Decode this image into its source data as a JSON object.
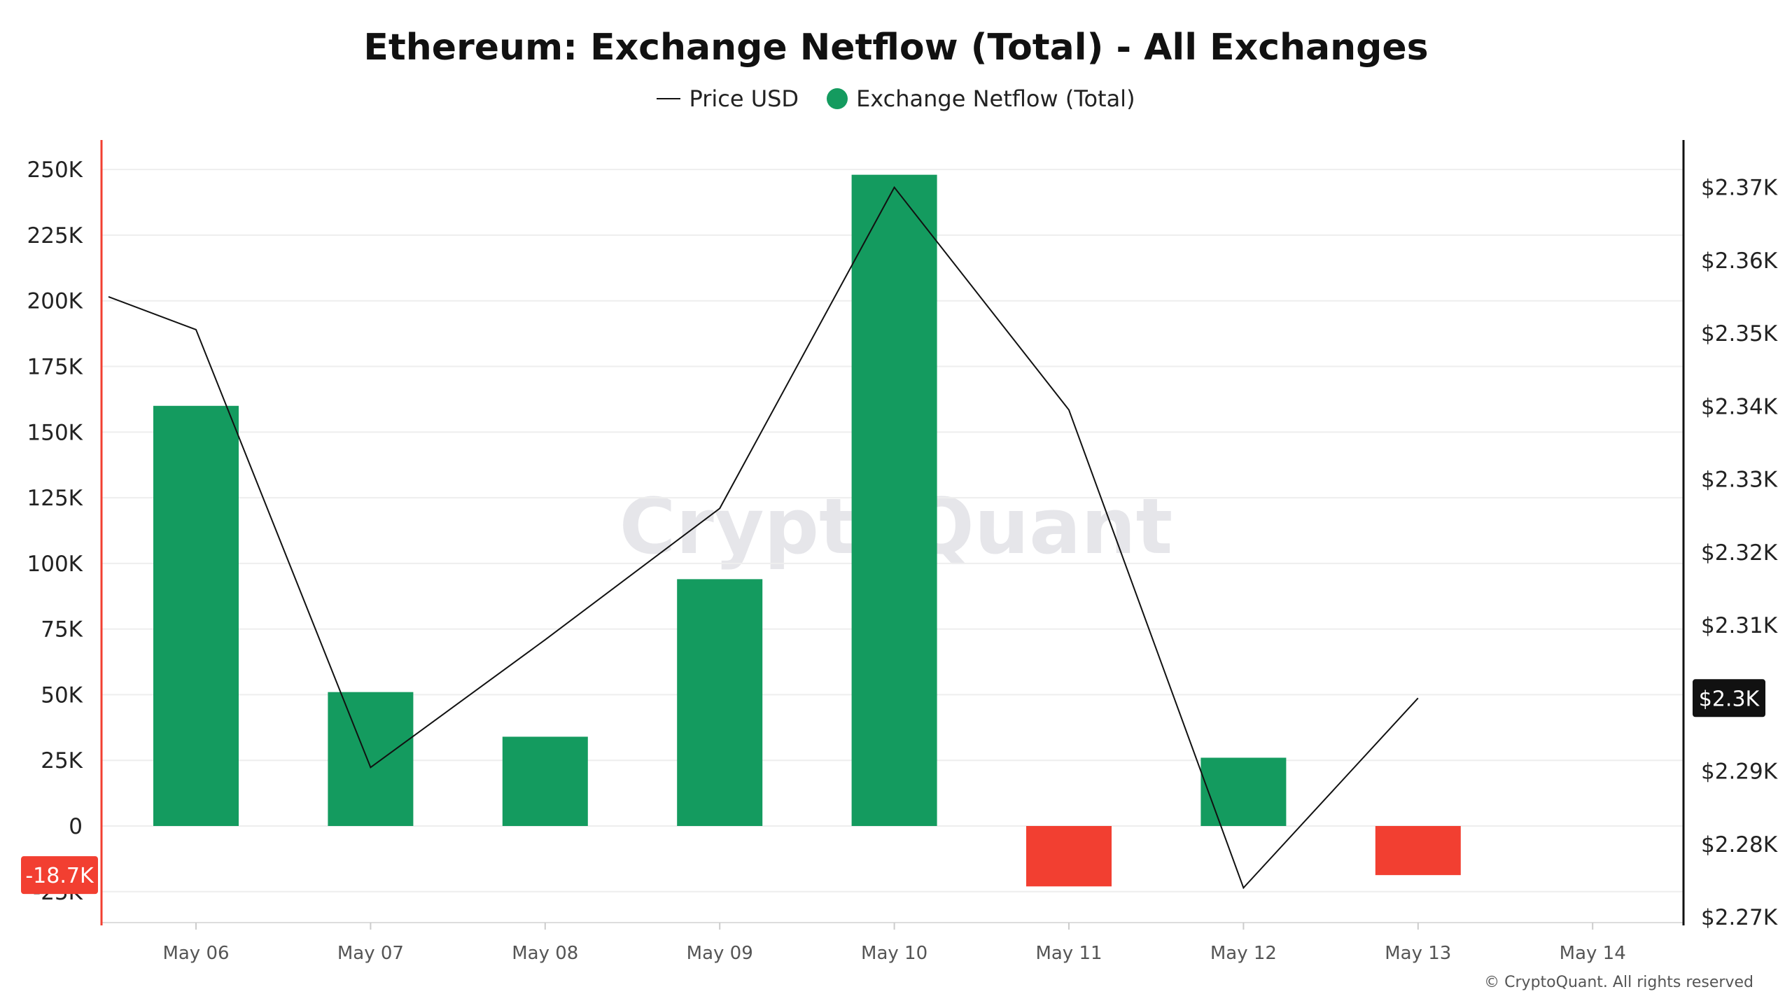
{
  "chart_data": {
    "type": "bar",
    "title": "Ethereum: Exchange Netflow (Total) - All Exchanges",
    "categories": [
      "May 06",
      "May 07",
      "May 08",
      "May 09",
      "May 10",
      "May 11",
      "May 12",
      "May 13",
      "May 14"
    ],
    "series": [
      {
        "name": "Exchange Netflow (Total)",
        "type": "bar",
        "axis": "left",
        "values": [
          160000,
          51000,
          34000,
          94000,
          248000,
          -23000,
          26000,
          -18700,
          null
        ]
      },
      {
        "name": "Price USD",
        "type": "line",
        "axis": "right",
        "values": [
          2350.5,
          2290.5,
          2308,
          2326,
          2370,
          2339.5,
          2274,
          2300,
          null
        ],
        "start_value": 2355
      }
    ],
    "left_axis": {
      "ticks": [
        "250K",
        "225K",
        "200K",
        "175K",
        "150K",
        "125K",
        "100K",
        "75K",
        "50K",
        "25K",
        "0",
        "-25K"
      ],
      "ylim": [
        -37000,
        260000
      ]
    },
    "right_axis": {
      "ticks": [
        "$2.37K",
        "$2.36K",
        "$2.35K",
        "$2.34K",
        "$2.33K",
        "$2.32K",
        "$2.31K",
        "$2.3K",
        "$2.29K",
        "$2.28K",
        "$2.27K"
      ],
      "ylim": [
        2270,
        2371.5
      ]
    },
    "current_value_labels": {
      "left": "-18.7K",
      "right": "$2.3K"
    },
    "legend": {
      "position": "top-center",
      "entries": [
        "Price USD",
        "Exchange Netflow (Total)"
      ]
    },
    "grid": true,
    "watermark": "CryptoQuant",
    "copyright": "© CryptoQuant. All rights reserved",
    "colors": {
      "positive": "#149B5F",
      "negative": "#F23F31",
      "line": "#111111",
      "grid": "#EEEEEE",
      "left_axis_line": "#F23F31",
      "right_axis_line": "#111111",
      "badge_dark": "#111111"
    }
  }
}
